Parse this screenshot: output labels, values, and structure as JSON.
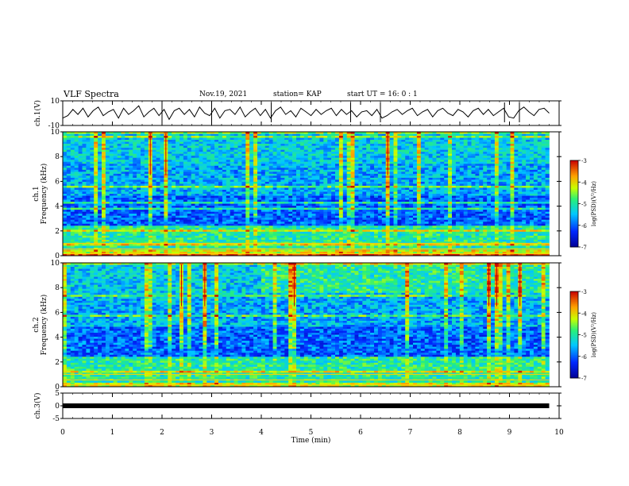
{
  "header": {
    "title": "VLF Spectra",
    "date": "Nov.19, 2021",
    "station": "station= KAP",
    "start": "start  UT =   16: 0  : 1"
  },
  "chart_data": [
    {
      "type": "line",
      "ylabel": "ch.1(V)",
      "ylim": [
        -10,
        10
      ],
      "yticks": [
        "10",
        "-10"
      ],
      "xlim": [
        0,
        10
      ],
      "series": [
        {
          "values": [
            -4,
            -2,
            3,
            -1,
            4,
            -3,
            2,
            5,
            -2,
            1,
            3,
            -4,
            4,
            -1,
            2,
            6,
            -3,
            1,
            4,
            -2,
            3,
            -5,
            2,
            4,
            -1,
            3,
            -3,
            5,
            0,
            -2,
            4,
            -4,
            2,
            3,
            -1,
            5,
            -3,
            1,
            4,
            -2,
            3,
            -4,
            2,
            5,
            -1,
            2,
            -3,
            4,
            1,
            -2,
            3,
            -1,
            2,
            4,
            -2,
            3,
            -1,
            2,
            -3,
            1,
            2,
            -2,
            3,
            -4,
            -2,
            1,
            3,
            -1,
            2,
            4,
            -2,
            1,
            3,
            -3,
            2,
            4,
            0,
            -2,
            3,
            1,
            -3,
            2,
            4,
            -1,
            3,
            -2,
            1,
            4,
            -3,
            -4,
            2,
            5,
            1,
            -2,
            3,
            4,
            0
          ]
        }
      ],
      "color": "#000000"
    },
    {
      "type": "heatmap",
      "ylabel": "ch.1\nFrequency (kHz)",
      "ylim": [
        0,
        10
      ],
      "yticks": [
        "0",
        "2",
        "4",
        "6",
        "8",
        "10"
      ],
      "xlim": [
        0,
        10
      ],
      "colorbar": {
        "label": "log(PSD)(V²/Hz)",
        "range": [
          -7,
          -3
        ],
        "ticks": [
          "-3",
          "-4",
          "-5",
          "-6",
          "-7"
        ]
      }
    },
    {
      "type": "heatmap",
      "ylabel": "ch.2\nFrequency (kHz)",
      "ylim": [
        0,
        10
      ],
      "yticks": [
        "0",
        "2",
        "4",
        "6",
        "8",
        "10"
      ],
      "xlim": [
        0,
        10
      ],
      "colorbar": {
        "label": "log(PSD)(V²/Hz)",
        "range": [
          -7,
          -3
        ],
        "ticks": [
          "-3",
          "-4",
          "-5",
          "-6",
          "-7"
        ]
      }
    },
    {
      "type": "line",
      "ylabel": "ch.3(V)",
      "ylim": [
        -5,
        5
      ],
      "yticks": [
        "5",
        "0",
        "-5"
      ],
      "xlim": [
        0,
        10
      ],
      "xlabel": "Time  (min)",
      "xticks": [
        "0",
        "1",
        "2",
        "3",
        "4",
        "5",
        "6",
        "7",
        "8",
        "9",
        "10"
      ],
      "series": [
        {
          "values": [
            0,
            0
          ]
        }
      ],
      "color": "#000000"
    }
  ]
}
